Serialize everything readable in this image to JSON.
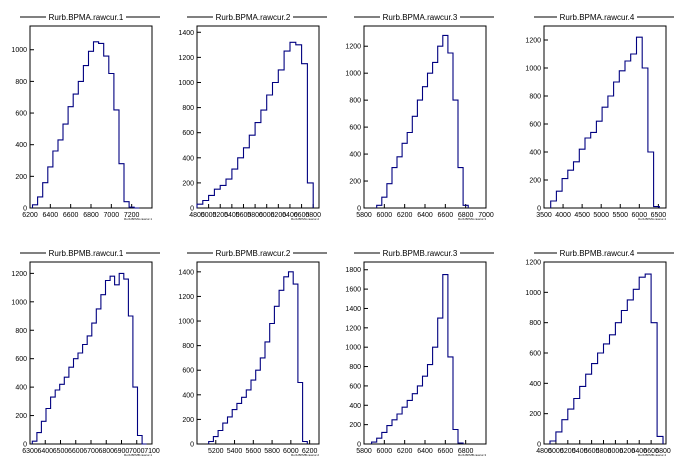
{
  "chart_data": [
    {
      "type": "histogram",
      "title": "Rurb.BPMA.rawcur.1",
      "xlabel": "Rurb.BPMA.rawcur.1",
      "xlim": [
        6200,
        7400
      ],
      "ylim": [
        0,
        1150
      ],
      "xticks": [
        6200,
        6400,
        6600,
        6800,
        7000,
        7200
      ],
      "yticks": [
        0,
        200,
        400,
        600,
        800,
        1000
      ],
      "x": [
        6250,
        6300,
        6350,
        6400,
        6450,
        6500,
        6550,
        6600,
        6650,
        6700,
        6750,
        6800,
        6850,
        6900,
        6950,
        7000,
        7050,
        7100,
        7150,
        7200,
        7250
      ],
      "values": [
        20,
        70,
        160,
        260,
        360,
        430,
        530,
        640,
        720,
        800,
        900,
        990,
        1050,
        1040,
        960,
        850,
        620,
        280,
        40,
        5,
        0
      ]
    },
    {
      "type": "histogram",
      "title": "Rurb.BPMA.rawcur.2",
      "xlabel": "Rurb.BPMA.rawcur.2",
      "xlim": [
        4800,
        6900
      ],
      "ylim": [
        0,
        1450
      ],
      "xticks": [
        4800,
        5000,
        5200,
        5400,
        5600,
        5800,
        6000,
        6200,
        6400,
        6600,
        6800
      ],
      "yticks": [
        0,
        200,
        400,
        600,
        800,
        1000,
        1200,
        1400
      ],
      "x": [
        4850,
        4950,
        5050,
        5150,
        5250,
        5350,
        5450,
        5550,
        5650,
        5750,
        5850,
        5950,
        6050,
        6150,
        6250,
        6350,
        6450,
        6550,
        6650,
        6750
      ],
      "values": [
        30,
        60,
        100,
        150,
        180,
        230,
        310,
        400,
        480,
        580,
        680,
        780,
        900,
        1000,
        1100,
        1250,
        1320,
        1300,
        1150,
        200
      ]
    },
    {
      "type": "histogram",
      "title": "Rurb.BPMA.rawcur.3",
      "xlabel": "Rurb.BPMA.rawcur.3",
      "xlim": [
        5800,
        7000
      ],
      "ylim": [
        0,
        1350
      ],
      "xticks": [
        5800,
        6000,
        6200,
        6400,
        6600,
        6800,
        7000
      ],
      "yticks": [
        0,
        200,
        400,
        600,
        800,
        1000,
        1200
      ],
      "x": [
        5950,
        6000,
        6050,
        6100,
        6150,
        6200,
        6250,
        6300,
        6350,
        6400,
        6450,
        6500,
        6550,
        6600,
        6650,
        6700,
        6750,
        6800
      ],
      "values": [
        20,
        80,
        180,
        300,
        380,
        480,
        560,
        680,
        800,
        900,
        1000,
        1080,
        1200,
        1280,
        1150,
        800,
        300,
        20
      ]
    },
    {
      "type": "histogram",
      "title": "Rurb.BPMA.rawcur.4",
      "xlabel": "Rurb.BPMA.rawcur.4",
      "xlim": [
        3500,
        6700
      ],
      "ylim": [
        0,
        1300
      ],
      "xticks": [
        3500,
        4000,
        4500,
        5000,
        5500,
        6000,
        6500
      ],
      "yticks": [
        0,
        200,
        400,
        600,
        800,
        1000,
        1200
      ],
      "x": [
        3750,
        3900,
        4050,
        4200,
        4350,
        4500,
        4650,
        4800,
        4950,
        5100,
        5250,
        5400,
        5550,
        5700,
        5850,
        6000,
        6150,
        6300,
        6450
      ],
      "values": [
        50,
        120,
        210,
        270,
        330,
        420,
        500,
        540,
        620,
        720,
        800,
        900,
        980,
        1050,
        1100,
        1220,
        1000,
        400,
        10
      ]
    },
    {
      "type": "histogram",
      "title": "Rurb.BPMB.rawcur.1",
      "xlabel": "Rurb.BPMB.rawcur.1",
      "xlim": [
        6300,
        7100
      ],
      "ylim": [
        0,
        1280
      ],
      "xticks": [
        6300,
        6400,
        6500,
        6600,
        6700,
        6800,
        6900,
        7000,
        7100
      ],
      "yticks": [
        0,
        200,
        400,
        600,
        800,
        1000,
        1200
      ],
      "x": [
        6330,
        6360,
        6390,
        6420,
        6450,
        6480,
        6510,
        6540,
        6570,
        6600,
        6630,
        6660,
        6690,
        6720,
        6750,
        6780,
        6810,
        6840,
        6870,
        6900,
        6930,
        6960,
        6990,
        7020,
        7050
      ],
      "values": [
        20,
        80,
        160,
        250,
        330,
        380,
        420,
        470,
        540,
        600,
        640,
        700,
        760,
        850,
        950,
        1050,
        1150,
        1180,
        1120,
        1200,
        1160,
        900,
        400,
        60,
        0
      ]
    },
    {
      "type": "histogram",
      "title": "Rurb.BPMB.rawcur.2",
      "xlabel": "Rurb.BPMB.rawcur.2",
      "xlim": [
        5000,
        6300
      ],
      "ylim": [
        0,
        1480
      ],
      "xticks": [
        5200,
        5400,
        5600,
        5800,
        6000,
        6200
      ],
      "yticks": [
        0,
        200,
        400,
        600,
        800,
        1000,
        1200,
        1400
      ],
      "x": [
        5150,
        5200,
        5250,
        5300,
        5350,
        5400,
        5450,
        5500,
        5550,
        5600,
        5650,
        5700,
        5750,
        5800,
        5850,
        5900,
        5950,
        6000,
        6050,
        6100,
        6150
      ],
      "values": [
        20,
        60,
        110,
        170,
        220,
        280,
        330,
        380,
        440,
        520,
        600,
        700,
        830,
        980,
        1120,
        1250,
        1360,
        1400,
        1300,
        500,
        20
      ]
    },
    {
      "type": "histogram",
      "title": "Rurb.BPMB.rawcur.3",
      "xlabel": "Rurb.BPMB.rawcur.3",
      "xlim": [
        5800,
        7000
      ],
      "ylim": [
        0,
        1880
      ],
      "xticks": [
        5800,
        6000,
        6200,
        6400,
        6600,
        6800
      ],
      "yticks": [
        0,
        200,
        400,
        600,
        800,
        1000,
        1200,
        1400,
        1600,
        1800
      ],
      "x": [
        5900,
        5950,
        6000,
        6050,
        6100,
        6150,
        6200,
        6250,
        6300,
        6350,
        6400,
        6450,
        6500,
        6550,
        6600,
        6650,
        6700,
        6750
      ],
      "values": [
        20,
        60,
        120,
        190,
        250,
        310,
        380,
        450,
        520,
        600,
        700,
        820,
        1000,
        1300,
        1750,
        900,
        150,
        10
      ]
    },
    {
      "type": "histogram",
      "title": "Rurb.BPMB.rawcur.4",
      "xlabel": "Rurb.BPMB.rawcur.4",
      "xlim": [
        4800,
        6850
      ],
      "ylim": [
        0,
        1200
      ],
      "xticks": [
        4800,
        5000,
        5200,
        5400,
        5600,
        5800,
        6000,
        6200,
        6400,
        6600,
        6800
      ],
      "yticks": [
        0,
        200,
        400,
        600,
        800,
        1000,
        1200
      ],
      "x": [
        4950,
        5050,
        5150,
        5250,
        5350,
        5450,
        5550,
        5650,
        5750,
        5850,
        5950,
        6050,
        6150,
        6250,
        6350,
        6450,
        6550,
        6650,
        6750
      ],
      "values": [
        20,
        80,
        160,
        230,
        300,
        380,
        460,
        530,
        600,
        660,
        720,
        800,
        880,
        950,
        1020,
        1100,
        1120,
        800,
        50
      ]
    }
  ],
  "colors": {
    "histogram_line": "#000080",
    "frame": "#000000",
    "background": "#ffffff"
  }
}
